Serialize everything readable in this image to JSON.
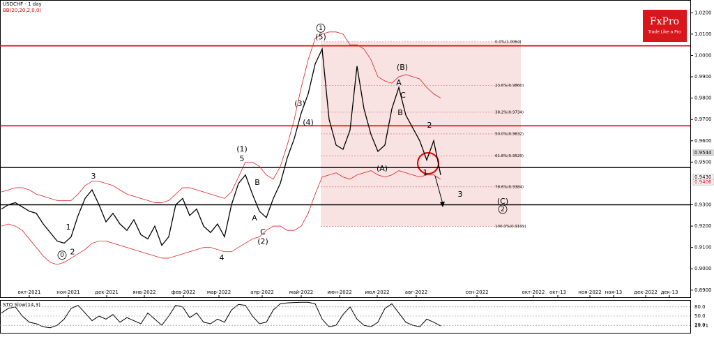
{
  "chart_data": [
    {
      "type": "line",
      "title": "USDCHF - 1 day",
      "subtitle": "BB(20,20,2,0,0)",
      "logo": {
        "name": "FxPro",
        "slogan": "Trade Like a Pro"
      },
      "x_labels": [
        "окт-2021",
        "ноя-2021",
        "дек-2021",
        "янв-2022",
        "фев-2022",
        "мар-2022",
        "апр-2022",
        "май-2022",
        "июн-2022",
        "июл-2022",
        "авг-2022",
        "сен-2022",
        "окт-2022",
        "окт-13",
        "ноя-2022",
        "ноя-13",
        "дек-2022",
        "дек-13"
      ],
      "ylim": [
        0.887,
        1.025
      ],
      "yticks": [
        {
          "value": 1.02,
          "label": "1.0200"
        },
        {
          "value": 1.01,
          "label": "1.0100"
        },
        {
          "value": 1.0,
          "label": "1.0000"
        },
        {
          "value": 0.99,
          "label": "0.9900"
        },
        {
          "value": 0.98,
          "label": "0.9800"
        },
        {
          "value": 0.97,
          "label": "0.9700"
        },
        {
          "value": 0.96,
          "label": "0.9600"
        },
        {
          "value": 0.95,
          "label": "0.9500"
        },
        {
          "value": 0.93,
          "label": "0.9300"
        },
        {
          "value": 0.92,
          "label": "0.9200"
        },
        {
          "value": 0.91,
          "label": "0.9100"
        },
        {
          "value": 0.9,
          "label": "0.9000"
        },
        {
          "value": 0.89,
          "label": "0.8900"
        }
      ],
      "series": [
        {
          "name": "USDCHF",
          "color": "#000000",
          "values": [
            0.928,
            0.93,
            0.931,
            0.929,
            0.927,
            0.926,
            0.921,
            0.917,
            0.913,
            0.912,
            0.915,
            0.925,
            0.933,
            0.937,
            0.93,
            0.922,
            0.926,
            0.921,
            0.918,
            0.923,
            0.916,
            0.914,
            0.92,
            0.911,
            0.915,
            0.93,
            0.933,
            0.925,
            0.928,
            0.92,
            0.917,
            0.921,
            0.915,
            0.93,
            0.94,
            0.944,
            0.935,
            0.927,
            0.924,
            0.933,
            0.94,
            0.952,
            0.961,
            0.973,
            0.982,
            0.996,
            1.003,
            0.97,
            0.958,
            0.956,
            0.965,
            0.995,
            0.975,
            0.963,
            0.955,
            0.958,
            0.975,
            0.985,
            0.972,
            0.966,
            0.96,
            0.951,
            0.96,
            0.944
          ]
        },
        {
          "name": "BB upper",
          "color": "#e02020",
          "values": [
            0.936,
            0.937,
            0.938,
            0.938,
            0.937,
            0.935,
            0.934,
            0.933,
            0.932,
            0.932,
            0.932,
            0.935,
            0.939,
            0.941,
            0.941,
            0.94,
            0.939,
            0.937,
            0.935,
            0.934,
            0.933,
            0.932,
            0.931,
            0.931,
            0.932,
            0.935,
            0.938,
            0.938,
            0.937,
            0.936,
            0.935,
            0.934,
            0.933,
            0.936,
            0.943,
            0.95,
            0.95,
            0.948,
            0.944,
            0.942,
            0.948,
            0.958,
            0.97,
            0.985,
            0.998,
            1.008,
            1.01,
            1.011,
            1.011,
            1.01,
            1.005,
            1.005,
            1.003,
            0.998,
            0.99,
            0.988,
            0.987,
            0.99,
            0.991,
            0.99,
            0.989,
            0.985,
            0.982,
            0.98
          ]
        },
        {
          "name": "BB lower",
          "color": "#e02020",
          "values": [
            0.92,
            0.921,
            0.92,
            0.918,
            0.914,
            0.91,
            0.906,
            0.903,
            0.902,
            0.903,
            0.905,
            0.907,
            0.909,
            0.912,
            0.913,
            0.913,
            0.912,
            0.911,
            0.91,
            0.909,
            0.908,
            0.907,
            0.906,
            0.905,
            0.905,
            0.906,
            0.907,
            0.908,
            0.909,
            0.91,
            0.91,
            0.909,
            0.908,
            0.908,
            0.91,
            0.912,
            0.914,
            0.915,
            0.918,
            0.92,
            0.92,
            0.918,
            0.918,
            0.92,
            0.926,
            0.935,
            0.943,
            0.944,
            0.945,
            0.943,
            0.942,
            0.944,
            0.945,
            0.946,
            0.944,
            0.943,
            0.944,
            0.946,
            0.945,
            0.944,
            0.943,
            0.944,
            0.944,
            0.942
          ]
        }
      ],
      "levels": [
        {
          "value": 1.0045,
          "color": "#e00000"
        },
        {
          "value": 0.967,
          "color": "#e00000"
        },
        {
          "value": 0.9475,
          "color": "#000000"
        },
        {
          "value": 0.93,
          "color": "#000000"
        }
      ],
      "fib": [
        {
          "label": "0.0%(1.0064)",
          "value": 1.0064
        },
        {
          "label": "23.6%(0.9860)",
          "value": 0.986
        },
        {
          "label": "38.2%(0.9734)",
          "value": 0.9734
        },
        {
          "label": "50.0%(0.9632)",
          "value": 0.9632
        },
        {
          "label": "61.8%(0.9529)",
          "value": 0.9529
        },
        {
          "label": "78.6%(0.9384)",
          "value": 0.9384
        },
        {
          "label": "100.0%(0.9199)",
          "value": 0.9199
        }
      ],
      "price_tags": [
        {
          "value": 0.9544,
          "label": "0.9544",
          "color": "#000000"
        },
        {
          "value": 0.943,
          "label": "0.9430",
          "color": "#000000"
        },
        {
          "value": 0.9406,
          "label": "0.9406",
          "color": "#e00000"
        }
      ],
      "annotations": [
        {
          "text": "1",
          "circled": true,
          "at": 45.8,
          "price": 1.0128
        },
        {
          "text": "(5)",
          "at": 45.8,
          "price": 1.0085
        },
        {
          "text": "(3)",
          "at": 42.8,
          "price": 0.9772
        },
        {
          "text": "(4)",
          "at": 44,
          "price": 0.9684
        },
        {
          "text": "(1)",
          "at": 34.5,
          "price": 0.956
        },
        {
          "text": "5",
          "at": 34.5,
          "price": 0.9514
        },
        {
          "text": "B",
          "at": 36.7,
          "price": 0.9403
        },
        {
          "text": "A",
          "at": 36.3,
          "price": 0.9237
        },
        {
          "text": "C",
          "at": 37.5,
          "price": 0.9171
        },
        {
          "text": "(2)",
          "at": 37.5,
          "price": 0.9126
        },
        {
          "text": "4",
          "at": 31.6,
          "price": 0.905
        },
        {
          "text": "3",
          "at": 13.2,
          "price": 0.9433
        },
        {
          "text": "1",
          "at": 9.6,
          "price": 0.9194
        },
        {
          "text": "2",
          "at": 10.2,
          "price": 0.9077
        },
        {
          "text": "0",
          "circled": true,
          "at": 8.7,
          "price": 0.9064
        },
        {
          "text": "(B)",
          "at": 57.5,
          "price": 0.9942
        },
        {
          "text": "A",
          "at": 57,
          "price": 0.987
        },
        {
          "text": "C",
          "at": 57.6,
          "price": 0.9811
        },
        {
          "text": "B",
          "at": 57.2,
          "price": 0.973
        },
        {
          "text": "(A)",
          "at": 54.6,
          "price": 0.9468
        },
        {
          "text": "2",
          "at": 61.4,
          "price": 0.9671
        },
        {
          "text": "1",
          "at": 60.8,
          "price": 0.9449
        },
        {
          "text": "3",
          "at": 65.8,
          "price": 0.9348
        },
        {
          "text": "(C)",
          "at": 71.9,
          "price": 0.9315
        },
        {
          "text": "2",
          "circled": true,
          "at": 71.9,
          "price": 0.9279
        }
      ]
    },
    {
      "type": "line",
      "title": "STO Slow(14,3)",
      "ylim": [
        0,
        100
      ],
      "yticks": [
        {
          "value": 80,
          "label": "80.0"
        },
        {
          "value": 50,
          "label": "50.0"
        },
        {
          "value": 20,
          "label": "20.0"
        }
      ],
      "current_label": "17.71",
      "series": [
        {
          "name": "STO",
          "color": "#000000",
          "values": [
            60,
            75,
            80,
            50,
            30,
            25,
            15,
            12,
            20,
            40,
            75,
            85,
            60,
            35,
            50,
            40,
            55,
            30,
            45,
            35,
            25,
            60,
            40,
            20,
            50,
            85,
            80,
            45,
            60,
            30,
            25,
            40,
            30,
            70,
            88,
            85,
            50,
            25,
            30,
            70,
            90,
            93,
            94,
            95,
            95,
            90,
            40,
            15,
            20,
            55,
            80,
            40,
            20,
            15,
            30,
            75,
            90,
            60,
            30,
            20,
            15,
            40,
            30,
            17.71
          ]
        }
      ]
    }
  ]
}
